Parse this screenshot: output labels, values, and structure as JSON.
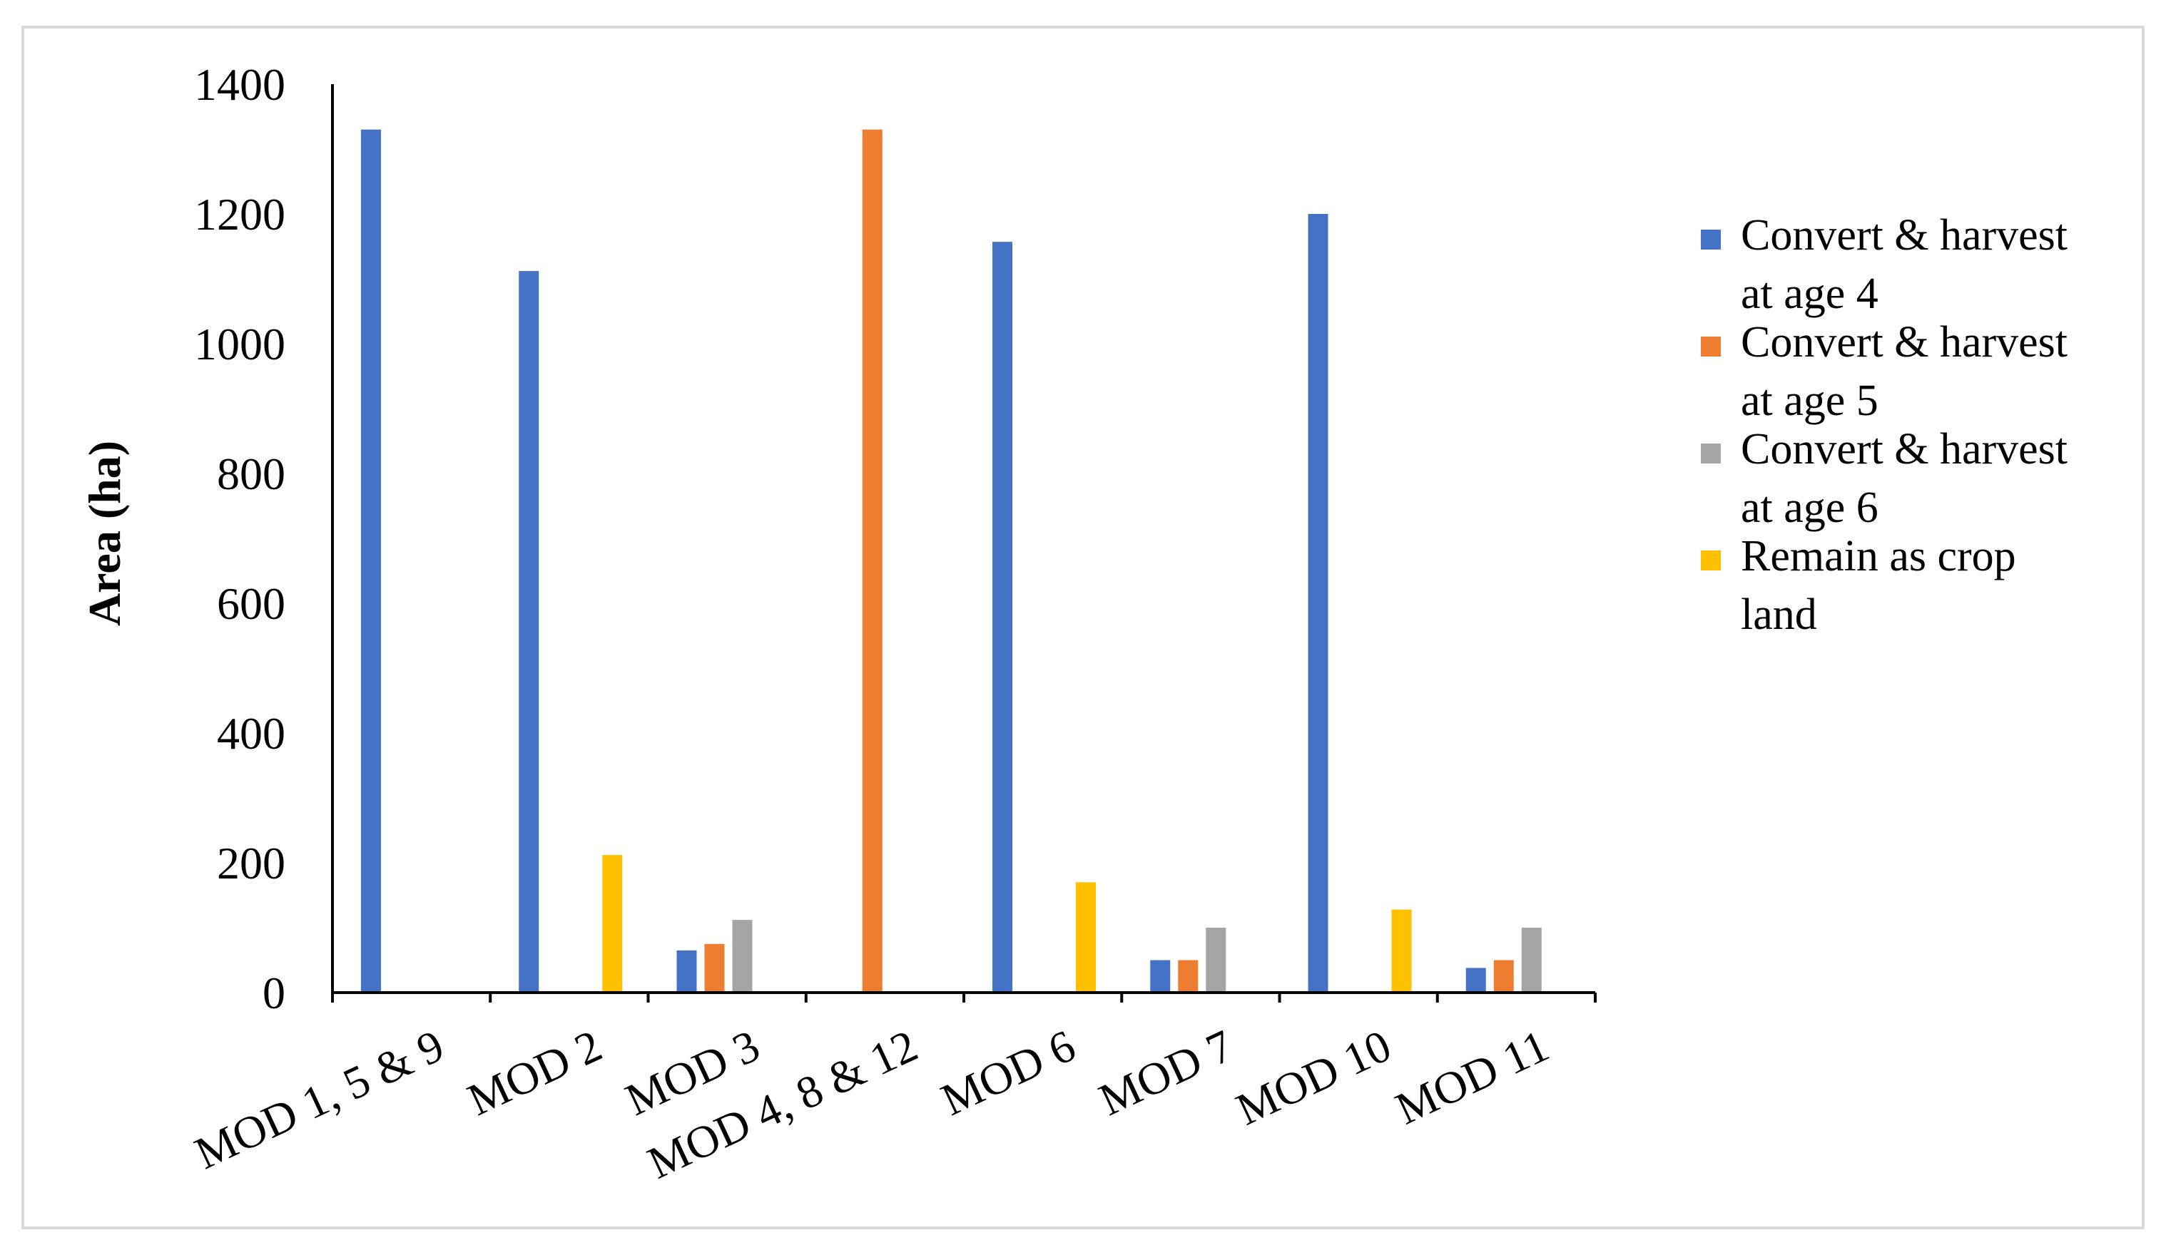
{
  "chart_data": {
    "type": "bar",
    "title": "",
    "xlabel": "",
    "ylabel": "Area (ha)",
    "ylim": [
      0,
      1400
    ],
    "yticks": [
      0,
      200,
      400,
      600,
      800,
      1000,
      1200,
      1400
    ],
    "grid": false,
    "legend_position": "right",
    "categories": [
      "MOD 1, 5 & 9",
      "MOD 2",
      "MOD 3",
      "MOD 4, 8 & 12",
      "MOD 6",
      "MOD 7",
      "MOD 10",
      "MOD 11"
    ],
    "series": [
      {
        "name": "Convert & harvest at age 4",
        "color": "#4472C4",
        "values": [
          1330,
          1112,
          65,
          0,
          1157,
          50,
          1200,
          38
        ]
      },
      {
        "name": "Convert & harvest at age 5",
        "color": "#ED7D31",
        "values": [
          0,
          0,
          75,
          1330,
          0,
          50,
          0,
          50
        ]
      },
      {
        "name": "Convert & harvest at age 6",
        "color": "#A5A5A5",
        "values": [
          0,
          0,
          112,
          0,
          0,
          100,
          0,
          100
        ]
      },
      {
        "name": "Remain as crop land",
        "color": "#FFC000",
        "values": [
          0,
          212,
          0,
          0,
          170,
          0,
          128,
          0
        ]
      }
    ]
  },
  "legend_lines": [
    [
      "Convert & harvest",
      "at age 4"
    ],
    [
      "Convert & harvest",
      "at age 5"
    ],
    [
      "Convert & harvest",
      "at age 6"
    ],
    [
      "Remain as crop",
      "land"
    ]
  ]
}
